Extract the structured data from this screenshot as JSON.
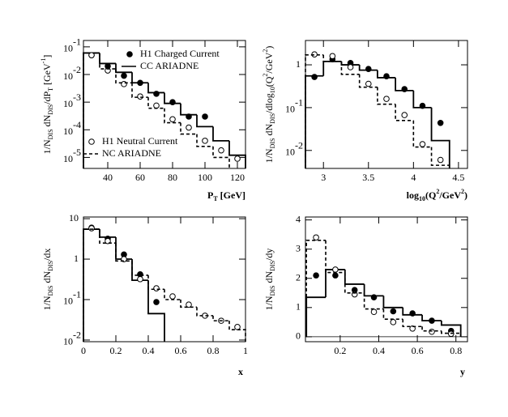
{
  "chart_data": [
    {
      "type": "hist",
      "log_y": true,
      "xlim": [
        25,
        125
      ],
      "ylim": [
        4e-06,
        0.17
      ],
      "xticks": [
        40,
        60,
        80,
        100,
        120
      ],
      "yticks": [
        {
          "value": 0.1,
          "label": "10",
          "exponent": "-1"
        },
        {
          "value": 0.01,
          "label": "10",
          "exponent": "-2"
        },
        {
          "value": 0.001,
          "label": "10",
          "exponent": "-3"
        },
        {
          "value": 0.0001,
          "label": "10",
          "exponent": "-4"
        },
        {
          "value": 1e-05,
          "label": "10",
          "exponent": "-5"
        }
      ],
      "xlabel": [
        {
          "text": "P"
        },
        {
          "text": "T",
          "pos": "sub"
        },
        {
          "text": " [GeV]"
        }
      ],
      "ylabel": [
        {
          "text": "1/N"
        },
        {
          "text": "DIS",
          "pos": "sub"
        },
        {
          "text": " dN"
        },
        {
          "text": "DIS",
          "pos": "sub"
        },
        {
          "text": "/dP"
        },
        {
          "text": "T",
          "pos": "sub"
        },
        {
          "text": " [GeV"
        },
        {
          "text": "-1",
          "pos": "sup"
        },
        {
          "text": "]"
        }
      ],
      "series": [
        {
          "name": "H1 Charged Current",
          "kind": "points",
          "filled": true,
          "color": "#000000",
          "x": [
            30,
            40,
            50,
            60,
            70,
            80,
            90,
            100
          ],
          "values": [
            0.05,
            0.02,
            0.009,
            0.005,
            0.002,
            0.001,
            0.0003,
            0.0003
          ]
        },
        {
          "name": "CC ARIADNE",
          "kind": "hist",
          "dashed": false,
          "color": "#000000",
          "bins": [
            25,
            35,
            45,
            55,
            65,
            75,
            85,
            95,
            105,
            115,
            125
          ],
          "values": [
            0.06,
            0.025,
            0.012,
            0.005,
            0.0022,
            0.0009,
            0.00035,
            0.00013,
            4e-05,
            1.2e-05
          ]
        },
        {
          "name": "H1 Neutral Current",
          "kind": "points",
          "filled": false,
          "color": "#000000",
          "x": [
            30,
            40,
            50,
            60,
            70,
            80,
            90,
            100,
            110,
            120
          ],
          "values": [
            0.05,
            0.014,
            0.0045,
            0.0016,
            0.00075,
            0.00024,
            0.00012,
            4e-05,
            1.8e-05,
            9e-06
          ]
        },
        {
          "name": "NC ARIADNE",
          "kind": "hist",
          "dashed": true,
          "color": "#000000",
          "bins": [
            25,
            35,
            45,
            55,
            65,
            75,
            85,
            95,
            105,
            115
          ],
          "values": [
            0.06,
            0.016,
            0.005,
            0.0015,
            0.0006,
            0.00018,
            7e-05,
            2.5e-05,
            1e-05
          ]
        }
      ]
    },
    {
      "type": "hist",
      "log_y": true,
      "xlim": [
        2.8,
        4.6
      ],
      "ylim": [
        0.0038,
        3.7
      ],
      "xticks": [
        3,
        3.5,
        4,
        4.5
      ],
      "yticks": [
        1,
        {
          "value": 0.1,
          "label": "10",
          "exponent": "-1"
        },
        {
          "value": 0.01,
          "label": "10",
          "exponent": "-2"
        }
      ],
      "xlabel": [
        {
          "text": "log"
        },
        {
          "text": "10",
          "pos": "sub"
        },
        {
          "text": "(Q"
        },
        {
          "text": "2",
          "pos": "sup"
        },
        {
          "text": "/GeV"
        },
        {
          "text": "2",
          "pos": "sup"
        },
        {
          "text": ")"
        }
      ],
      "ylabel": [
        {
          "text": "1/N"
        },
        {
          "text": "DIS",
          "pos": "sub"
        },
        {
          "text": " dN"
        },
        {
          "text": "DIS",
          "pos": "sub"
        },
        {
          "text": "/dlog"
        },
        {
          "text": "10",
          "pos": "sub"
        },
        {
          "text": "(Q"
        },
        {
          "text": "2",
          "pos": "sup"
        },
        {
          "text": "/GeV"
        },
        {
          "text": "2",
          "pos": "sup"
        },
        {
          "text": ")"
        }
      ],
      "series": [
        {
          "kind": "points",
          "filled": true,
          "color": "#000000",
          "x": [
            2.9,
            3.1,
            3.3,
            3.5,
            3.7,
            3.9,
            4.1,
            4.3
          ],
          "values": [
            0.52,
            1.35,
            1.1,
            0.8,
            0.54,
            0.27,
            0.11,
            0.044
          ]
        },
        {
          "kind": "hist",
          "dashed": false,
          "color": "#000000",
          "bins": [
            2.8,
            3.0,
            3.2,
            3.4,
            3.6,
            3.8,
            4.0,
            4.2,
            4.4
          ],
          "values": [
            0.55,
            1.2,
            1.0,
            0.75,
            0.5,
            0.25,
            0.1,
            0.017
          ]
        },
        {
          "kind": "points",
          "filled": false,
          "color": "#000000",
          "x": [
            2.9,
            3.1,
            3.3,
            3.5,
            3.7,
            3.9,
            4.1,
            4.3
          ],
          "values": [
            1.75,
            1.6,
            0.88,
            0.36,
            0.16,
            0.067,
            0.014,
            0.006
          ]
        },
        {
          "kind": "hist",
          "dashed": true,
          "color": "#000000",
          "bins": [
            2.8,
            3.0,
            3.2,
            3.4,
            3.6,
            3.8,
            4.0,
            4.2,
            4.4
          ],
          "values": [
            1.7,
            1.2,
            0.6,
            0.3,
            0.12,
            0.05,
            0.012,
            0.0045
          ]
        }
      ]
    },
    {
      "type": "hist",
      "log_y": true,
      "xlim": [
        0,
        1
      ],
      "ylim": [
        0.0091,
        11
      ],
      "xticks": [
        0,
        0.2,
        0.4,
        0.6,
        0.8,
        1
      ],
      "yticks": [
        10,
        1,
        {
          "value": 0.1,
          "label": "10",
          "exponent": "-1"
        },
        {
          "value": 0.01,
          "label": "10",
          "exponent": "-2"
        }
      ],
      "xlabel": [
        {
          "text": "x"
        }
      ],
      "ylabel": [
        {
          "text": "1/N"
        },
        {
          "text": "DIS",
          "pos": "sub"
        },
        {
          "text": " dN"
        },
        {
          "text": "DIS",
          "pos": "sub"
        },
        {
          "text": "/dx"
        }
      ],
      "series": [
        {
          "kind": "points",
          "filled": true,
          "color": "#000000",
          "x": [
            0.05,
            0.15,
            0.25,
            0.35,
            0.45
          ],
          "values": [
            6,
            3.2,
            1.3,
            0.42,
            0.087
          ]
        },
        {
          "kind": "hist",
          "dashed": false,
          "color": "#000000",
          "bins": [
            0,
            0.1,
            0.2,
            0.3,
            0.4,
            0.5
          ],
          "values": [
            5.5,
            3.5,
            1.0,
            0.3,
            0.045
          ]
        },
        {
          "kind": "points",
          "filled": false,
          "color": "#000000",
          "x": [
            0.05,
            0.15,
            0.25,
            0.35,
            0.45,
            0.55,
            0.65,
            0.75,
            0.85,
            0.95
          ],
          "values": [
            5.8,
            2.8,
            1.0,
            0.32,
            0.19,
            0.12,
            0.075,
            0.04,
            0.03,
            0.021
          ]
        },
        {
          "kind": "hist",
          "dashed": true,
          "color": "#000000",
          "bins": [
            0,
            0.1,
            0.2,
            0.3,
            0.4,
            0.5,
            0.6,
            0.7,
            0.8,
            0.9,
            1
          ],
          "values": [
            5.5,
            2.5,
            0.9,
            0.4,
            0.18,
            0.1,
            0.065,
            0.04,
            0.03,
            0.018
          ]
        }
      ]
    },
    {
      "type": "hist",
      "log_y": false,
      "xlim": [
        0.02,
        0.86
      ],
      "ylim": [
        -0.17,
        4.1
      ],
      "xticks": [
        0.2,
        0.4,
        0.6,
        0.8
      ],
      "yticks": [
        0,
        1,
        2,
        3,
        4
      ],
      "xlabel": [
        {
          "text": "y"
        }
      ],
      "ylabel": [
        {
          "text": "1/N"
        },
        {
          "text": "DIS",
          "pos": "sub"
        },
        {
          "text": " dN"
        },
        {
          "text": "DIS",
          "pos": "sub"
        },
        {
          "text": "/dy"
        }
      ],
      "series": [
        {
          "kind": "points",
          "filled": true,
          "color": "#000000",
          "x": [
            0.075,
            0.175,
            0.275,
            0.375,
            0.475,
            0.575,
            0.675,
            0.775
          ],
          "values": [
            2.1,
            2.1,
            1.6,
            1.35,
            0.87,
            0.8,
            0.55,
            0.2
          ]
        },
        {
          "kind": "hist",
          "dashed": false,
          "color": "#000000",
          "bins": [
            0.025,
            0.125,
            0.225,
            0.325,
            0.425,
            0.525,
            0.625,
            0.725,
            0.825
          ],
          "values": [
            1.35,
            2.3,
            1.8,
            1.4,
            1.0,
            0.75,
            0.55,
            0.4
          ]
        },
        {
          "kind": "points",
          "filled": false,
          "color": "#000000",
          "x": [
            0.075,
            0.175,
            0.275,
            0.375,
            0.475,
            0.575,
            0.675,
            0.775
          ],
          "values": [
            3.4,
            2.3,
            1.45,
            0.85,
            0.5,
            0.28,
            0.17,
            0.1
          ]
        },
        {
          "kind": "hist",
          "dashed": true,
          "color": "#000000",
          "bins": [
            0.025,
            0.125,
            0.225,
            0.325,
            0.425,
            0.525,
            0.625,
            0.725,
            0.825
          ],
          "values": [
            3.3,
            2.2,
            1.5,
            0.95,
            0.6,
            0.35,
            0.2,
            0.12
          ]
        }
      ]
    }
  ]
}
